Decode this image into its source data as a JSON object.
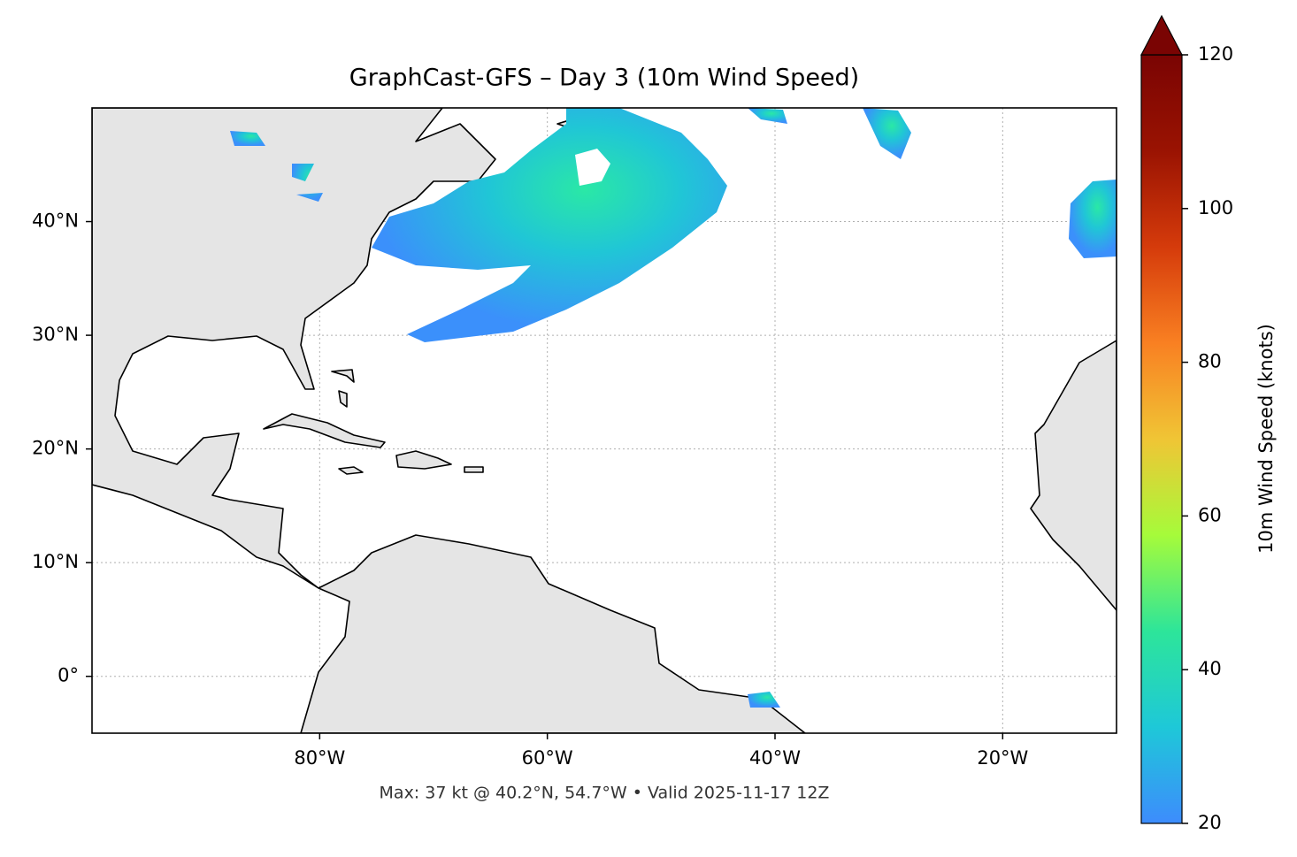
{
  "chart_data": {
    "type": "map",
    "title": "GraphCast-GFS – Day 3 (10m Wind Speed)",
    "footer": "Max: 37 kt @ 40.2°N, 54.7°W • Valid 2025-11-17 12Z",
    "xlim": [
      -100,
      -10
    ],
    "ylim": [
      -5,
      50
    ],
    "xticks": [
      {
        "value": -80,
        "label": "80°W"
      },
      {
        "value": -60,
        "label": "60°W"
      },
      {
        "value": -40,
        "label": "40°W"
      },
      {
        "value": -20,
        "label": "20°W"
      }
    ],
    "yticks": [
      {
        "value": 0,
        "label": "0°"
      },
      {
        "value": 10,
        "label": "10°N"
      },
      {
        "value": 20,
        "label": "20°N"
      },
      {
        "value": 30,
        "label": "30°N"
      },
      {
        "value": 40,
        "label": "40°N"
      }
    ],
    "grid": true,
    "colorbar": {
      "label": "10m Wind Speed (knots)",
      "lim": [
        20,
        120
      ],
      "ticks": [
        20,
        40,
        60,
        80,
        100,
        120
      ],
      "extend": "max",
      "colors": [
        "#3d8cfd",
        "#1ec8d8",
        "#2de59a",
        "#a6fb3a",
        "#f0c535",
        "#f98022",
        "#d53b0b",
        "#9a1302",
        "#7a0403"
      ]
    }
  }
}
